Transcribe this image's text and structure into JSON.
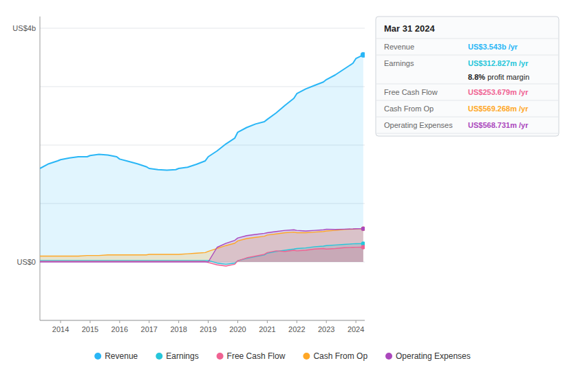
{
  "chart_data": {
    "type": "area",
    "x": [
      2013.3,
      2013.6,
      2013.9,
      2014.0,
      2014.3,
      2014.6,
      2014.9,
      2015.0,
      2015.3,
      2015.6,
      2015.9,
      2016.0,
      2016.3,
      2016.6,
      2016.9,
      2017.0,
      2017.3,
      2017.6,
      2017.9,
      2018.0,
      2018.3,
      2018.6,
      2018.9,
      2019.0,
      2019.3,
      2019.6,
      2019.9,
      2020.0,
      2020.3,
      2020.6,
      2020.9,
      2021.0,
      2021.3,
      2021.6,
      2021.9,
      2022.0,
      2022.3,
      2022.6,
      2022.9,
      2023.0,
      2023.3,
      2023.6,
      2023.9,
      2024.0,
      2024.25
    ],
    "series": [
      {
        "name": "Revenue",
        "color": "#29b6f6",
        "values": [
          1.6,
          1.68,
          1.73,
          1.75,
          1.78,
          1.8,
          1.8,
          1.82,
          1.84,
          1.83,
          1.8,
          1.76,
          1.72,
          1.68,
          1.63,
          1.6,
          1.58,
          1.57,
          1.58,
          1.6,
          1.62,
          1.67,
          1.73,
          1.8,
          1.9,
          2.02,
          2.12,
          2.22,
          2.3,
          2.36,
          2.4,
          2.44,
          2.55,
          2.68,
          2.8,
          2.88,
          2.96,
          3.02,
          3.08,
          3.12,
          3.2,
          3.3,
          3.4,
          3.48,
          3.543
        ]
      },
      {
        "name": "Earnings",
        "color": "#26c6da",
        "values": [
          0.025,
          0.025,
          0.025,
          0.025,
          0.025,
          0.025,
          0.025,
          0.025,
          0.025,
          0.025,
          0.025,
          0.025,
          0.025,
          0.025,
          0.025,
          0.025,
          0.025,
          0.025,
          0.025,
          0.025,
          0.025,
          0.025,
          0.025,
          0.025,
          -0.02,
          -0.04,
          -0.02,
          0.02,
          0.06,
          0.09,
          0.12,
          0.15,
          0.18,
          0.2,
          0.22,
          0.23,
          0.24,
          0.26,
          0.27,
          0.28,
          0.29,
          0.3,
          0.31,
          0.312,
          0.3128
        ]
      },
      {
        "name": "Free Cash Flow",
        "color": "#f06292",
        "values": [
          0.01,
          0.01,
          0.01,
          0.01,
          0.01,
          0.01,
          0.01,
          0.01,
          0.01,
          0.01,
          0.01,
          0.01,
          0.01,
          0.01,
          0.01,
          0.01,
          0.01,
          0.01,
          0.01,
          0.01,
          0.01,
          0.01,
          0.008,
          -0.01,
          -0.05,
          -0.07,
          -0.04,
          0.02,
          0.07,
          0.1,
          0.13,
          0.16,
          0.19,
          0.18,
          0.2,
          0.19,
          0.2,
          0.22,
          0.23,
          0.22,
          0.23,
          0.245,
          0.25,
          0.252,
          0.2537
        ]
      },
      {
        "name": "Cash From Op",
        "color": "#ffa726",
        "values": [
          0.1,
          0.1,
          0.1,
          0.1,
          0.1,
          0.1,
          0.11,
          0.11,
          0.11,
          0.12,
          0.12,
          0.12,
          0.12,
          0.12,
          0.12,
          0.13,
          0.13,
          0.13,
          0.13,
          0.13,
          0.14,
          0.15,
          0.16,
          0.18,
          0.23,
          0.28,
          0.32,
          0.36,
          0.4,
          0.42,
          0.44,
          0.46,
          0.48,
          0.5,
          0.51,
          0.5,
          0.5,
          0.51,
          0.52,
          0.53,
          0.54,
          0.555,
          0.562,
          0.568,
          0.5693
        ]
      },
      {
        "name": "Operating Expenses",
        "color": "#ab47bc",
        "values": [
          0.0,
          0.0,
          0.0,
          0.0,
          0.0,
          0.0,
          0.0,
          0.0,
          0.0,
          0.0,
          0.0,
          0.0,
          0.0,
          0.0,
          0.0,
          0.0,
          0.0,
          0.0,
          0.0,
          0.0,
          0.0,
          0.0,
          0.0,
          0.0,
          0.25,
          0.32,
          0.37,
          0.41,
          0.45,
          0.47,
          0.49,
          0.5,
          0.52,
          0.54,
          0.55,
          0.54,
          0.53,
          0.54,
          0.55,
          0.56,
          0.555,
          0.56,
          0.565,
          0.568,
          0.5687
        ]
      }
    ],
    "xlim": [
      2013.3,
      2024.3
    ],
    "xticks": [
      2014,
      2015,
      2016,
      2017,
      2018,
      2019,
      2020,
      2021,
      2022,
      2023,
      2024
    ],
    "ylim": [
      -1.0,
      4.2
    ],
    "yticks": [
      {
        "value": -1.0,
        "label": null
      },
      {
        "value": 0.0,
        "label": "US$0"
      },
      {
        "value": 1.0,
        "label": null
      },
      {
        "value": 2.0,
        "label": null
      },
      {
        "value": 3.0,
        "label": null
      },
      {
        "value": 4.0,
        "label": "US$4b"
      }
    ],
    "grid": true,
    "legend": "bottom",
    "annotations": [
      {
        "text": "Mar 31 2024"
      },
      {
        "series": "Revenue",
        "text": "US$3.543b /yr"
      },
      {
        "series": "Earnings",
        "text": "US$312.827m /yr"
      },
      {
        "text": "8.8%",
        "note": " profit margin"
      },
      {
        "series": "Free Cash Flow",
        "text": "US$253.679m /yr"
      },
      {
        "series": "Cash From Op",
        "text": "US$569.268m /yr"
      },
      {
        "series": "Operating Expenses",
        "text": "US$568.731m /yr"
      }
    ]
  }
}
